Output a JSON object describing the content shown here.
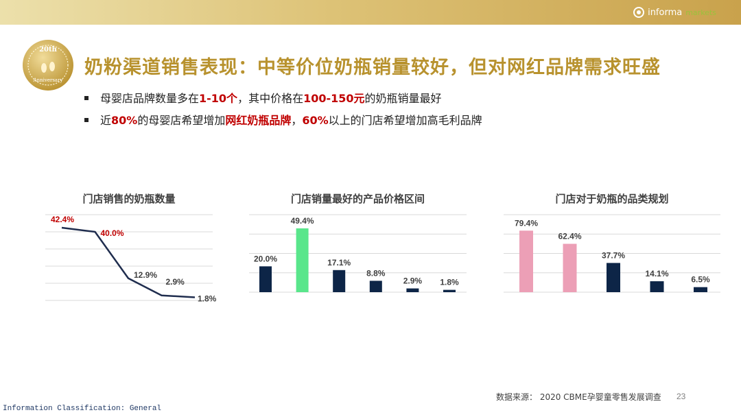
{
  "header": {
    "logo_text": "informa",
    "logo_sub": "markets"
  },
  "badge": {
    "text_top": "20th",
    "text_bottom": "Anniversary"
  },
  "title": "奶粉渠道销售表现：中等价位奶瓶销量较好，但对网红品牌需求旺盛",
  "bullets": [
    {
      "p1": "母婴店品牌数量多在",
      "h1": "1-10个",
      "p2": "，其中价格在",
      "h2": "100-150元",
      "p3": "的奶瓶销量最好"
    },
    {
      "p1": "近",
      "h1": "80%",
      "p2": "的母婴店希望增加",
      "h2": "网红奶瓶品牌",
      "p3": "，",
      "h3": "60%",
      "p4": "以上的门店希望增加高毛利品牌"
    }
  ],
  "chart_data": [
    {
      "type": "line",
      "title": "门店销售的奶瓶数量",
      "values": [
        42.4,
        40.0,
        12.9,
        2.9,
        1.8
      ],
      "labels": [
        "42.4%",
        "40.0%",
        "12.9%",
        "2.9%",
        "1.8%"
      ],
      "label_colors": [
        "#c00000",
        "#c00000",
        "#404040",
        "#404040",
        "#404040"
      ],
      "line_color": "#1f2d4e",
      "ylim": [
        0,
        50
      ],
      "grid": true
    },
    {
      "type": "bar",
      "title": "门店销量最好的产品价格区间",
      "values": [
        20.0,
        49.4,
        17.1,
        8.8,
        2.9,
        1.8
      ],
      "labels": [
        "20.0%",
        "49.4%",
        "17.1%",
        "8.8%",
        "2.9%",
        "1.8%"
      ],
      "colors": [
        "#0d2547",
        "#59e68b",
        "#0d2547",
        "#0d2547",
        "#0d2547",
        "#0d2547"
      ],
      "ylim": [
        0,
        60
      ],
      "grid": true
    },
    {
      "type": "bar",
      "title": "门店对于奶瓶的品类规划",
      "values": [
        79.4,
        62.4,
        37.7,
        14.1,
        6.5
      ],
      "labels": [
        "79.4%",
        "62.4%",
        "37.7%",
        "14.1%",
        "6.5%"
      ],
      "colors": [
        "#ec9fb6",
        "#ec9fb6",
        "#0d2547",
        "#0d2547",
        "#0d2547"
      ],
      "ylim": [
        0,
        100
      ],
      "grid": true
    }
  ],
  "footer": {
    "source": "数据来源： 2020 CBME孕婴童零售发展调查",
    "page_number": "23",
    "classification": "Information Classification: General"
  }
}
